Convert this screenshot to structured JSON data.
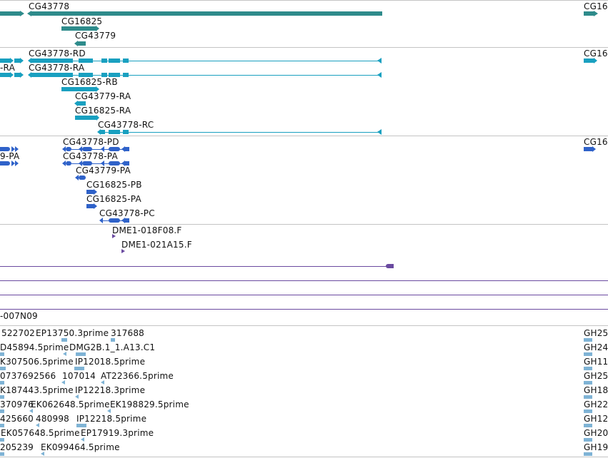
{
  "colors": {
    "gene": "#2e8b8b",
    "transcript": "#19a0c0",
    "protein": "#2f62c9",
    "clone": "#6a4aa0",
    "est": "#7fb3d5",
    "separator": "#c4c4c4",
    "line": "#6a4aa0"
  },
  "genes": {
    "labels": [
      "CG43778",
      "CG16825",
      "CG43779",
      "CG16"
    ]
  },
  "transcripts": {
    "labels": [
      "CG43778-RD",
      "-RA",
      "CG43778-RA",
      "CG16825-RB",
      "CG43779-RA",
      "CG16825-RA",
      "CG43778-RC",
      "CG16"
    ]
  },
  "proteins": {
    "labels": [
      "CG43778-PD",
      "9-PA",
      "CG43778-PA",
      "CG43779-PA",
      "CG16825-PB",
      "CG16825-PA",
      "CG43778-PC",
      "CG16"
    ]
  },
  "clones": {
    "labels": [
      "DME1-018F08.F",
      "DME1-021A15.F"
    ]
  },
  "bac": {
    "label": "-007N09"
  },
  "ests": {
    "rows": [
      [
        "522702",
        "EP13750.3prime",
        "317688",
        "GH25"
      ],
      [
        "D45894.5prime",
        "DMG2B.1_1.A13.C1",
        "GH24"
      ],
      [
        "K307506.5prime",
        "IP12018.5prime",
        "GH11"
      ],
      [
        "0737692566",
        "107014",
        "AT22366.5prime",
        "GH25"
      ],
      [
        "K187443.5prime",
        "IP12218.3prime",
        "GH18"
      ],
      [
        "370976",
        "EK062648.5prime",
        "EK198829.5prime",
        "GH22"
      ],
      [
        "425660",
        "480998",
        "IP12218.5prime",
        "GH12"
      ],
      [
        "EK057648.5prime",
        "EP17919.3prime",
        "GH20"
      ],
      [
        "205239",
        "EK099464.5prime",
        "GH19"
      ]
    ]
  }
}
